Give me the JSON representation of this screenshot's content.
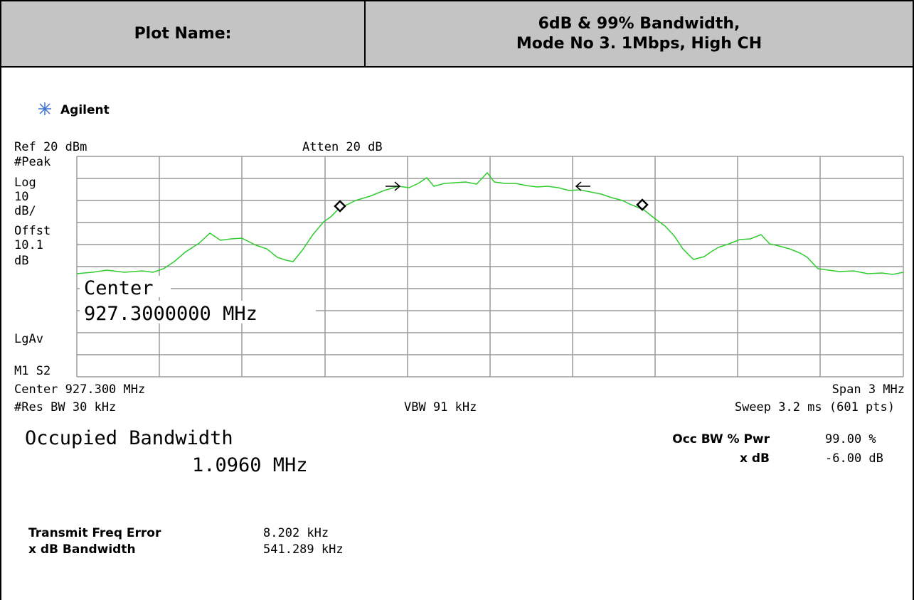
{
  "header": {
    "label": "Plot Name:",
    "title_lines": [
      "6dB & 99% Bandwidth,",
      "Mode No 3. 1Mbps, High CH"
    ]
  },
  "instrument": {
    "brand": "Agilent",
    "ref_level": "Ref 20 dBm",
    "attenuation": "Atten 20 dB",
    "side_labels": [
      "#Peak",
      "Log",
      "10",
      "dB/",
      "Offst",
      "10.1",
      "dB",
      "LgAv",
      "M1  S2"
    ],
    "center_overlay": [
      "Center",
      "927.3000000 MHz"
    ],
    "center_freq": "Center 927.300 MHz",
    "span": "Span 3 MHz",
    "res_bw": "#Res BW 30 kHz",
    "vbw": "VBW 91 kHz",
    "sweep": "Sweep 3.2 ms (601 pts)"
  },
  "results": {
    "occupied_bandwidth_label": "Occupied Bandwidth",
    "occupied_bandwidth_value": "1.0960 MHz",
    "occ_bw_pwr_label": "Occ BW % Pwr",
    "occ_bw_pwr_value": "99.00 %",
    "x_db_label": "x dB",
    "x_db_value": "-6.00 dB",
    "freq_error_label": "Transmit Freq Error",
    "freq_error_value": "8.202 kHz",
    "xdb_bandwidth_label": "x dB Bandwidth",
    "xdb_bandwidth_value": "541.289 kHz"
  }
}
